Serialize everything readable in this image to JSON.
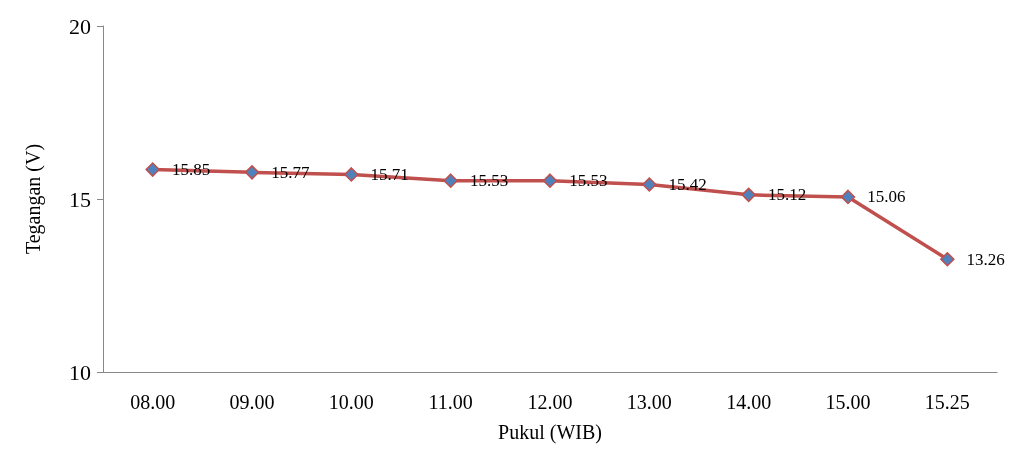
{
  "chart_data": {
    "type": "line",
    "xlabel": "Pukul (WIB)",
    "ylabel": "Tegangan (V)",
    "categories": [
      "08.00",
      "09.00",
      "10.00",
      "11.00",
      "12.00",
      "13.00",
      "14.00",
      "15.00",
      "15.25"
    ],
    "series": [
      {
        "color": "#c0504d",
        "values": [
          15.85,
          15.77,
          15.71,
          15.53,
          15.53,
          15.42,
          15.12,
          15.06,
          13.26
        ]
      }
    ],
    "ylim": [
      10,
      20
    ],
    "yticks": [
      10,
      15,
      20
    ],
    "grid": false,
    "marker": "diamond",
    "line_style": "solid",
    "data_labels": true
  }
}
